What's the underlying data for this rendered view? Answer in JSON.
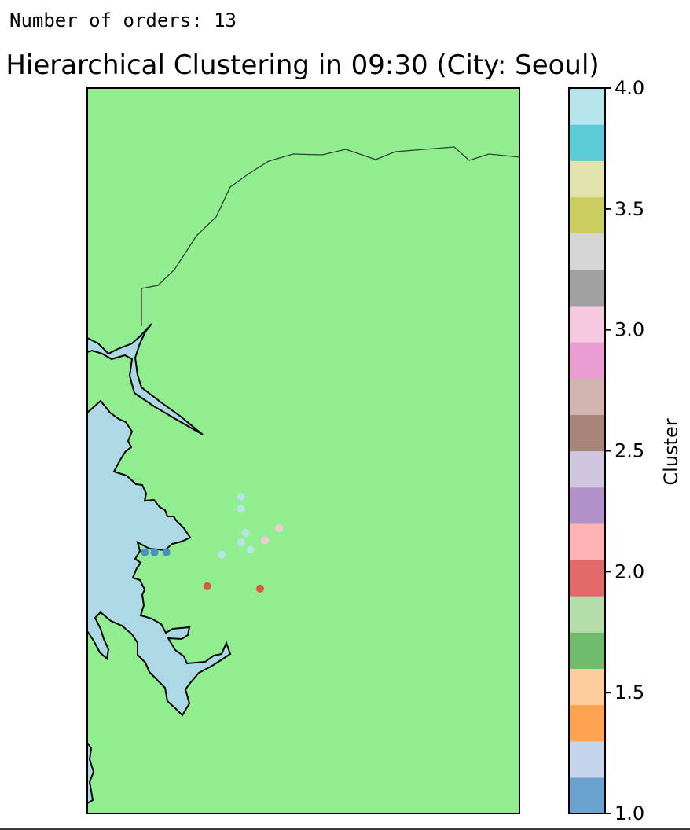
{
  "output": {
    "orders_line": "Number of orders: 13"
  },
  "chart_data": {
    "type": "scatter",
    "title": "Hierarchical Clustering in 09:30 (City: Seoul)",
    "map": {
      "land_color": "#90ee90",
      "water_color": "#add8e6"
    },
    "points": [
      {
        "lon": 126.962,
        "lat": 37.5705,
        "cluster": 4.0
      },
      {
        "lon": 126.962,
        "lat": 37.568,
        "cluster": 4.0
      },
      {
        "lon": 126.963,
        "lat": 37.563,
        "cluster": 4.0
      },
      {
        "lon": 126.962,
        "lat": 37.561,
        "cluster": 4.0
      },
      {
        "lon": 126.964,
        "lat": 37.5595,
        "cluster": 4.0
      },
      {
        "lon": 126.958,
        "lat": 37.5585,
        "cluster": 4.0
      },
      {
        "lon": 126.967,
        "lat": 37.5615,
        "cluster": 3.0
      },
      {
        "lon": 126.97,
        "lat": 37.564,
        "cluster": 3.0
      },
      {
        "lon": 126.944,
        "lat": 37.559,
        "cluster": 1.0
      },
      {
        "lon": 126.9465,
        "lat": 37.559,
        "cluster": 1.0
      },
      {
        "lon": 126.955,
        "lat": 37.552,
        "cluster": 2.0
      },
      {
        "lon": 126.966,
        "lat": 37.5515,
        "cluster": 2.0
      },
      {
        "lon": 126.942,
        "lat": 37.559,
        "cluster": 1.0
      }
    ],
    "colorbar": {
      "label": "Cluster",
      "range": [
        1.0,
        4.0
      ],
      "ticks": [
        "1.0",
        "1.5",
        "2.0",
        "2.5",
        "3.0",
        "3.5",
        "4.0"
      ],
      "colors": [
        "#6aa2cd",
        "#c5d6ec",
        "#fda350",
        "#fdcc9d",
        "#6fbb6b",
        "#b5dfaa",
        "#e36a6a",
        "#fcb2b1",
        "#b392cc",
        "#d1c6e0",
        "#a88479",
        "#d2b5b0",
        "#e99dd2",
        "#f5cae0",
        "#a1a1a1",
        "#d5d5d5",
        "#cccd60",
        "#e3e3ad",
        "#5ccbd8",
        "#b7e3ea"
      ]
    },
    "axes": {
      "lon_range": [
        126.93,
        127.02
      ],
      "lat_range": [
        37.505,
        37.655
      ]
    }
  }
}
